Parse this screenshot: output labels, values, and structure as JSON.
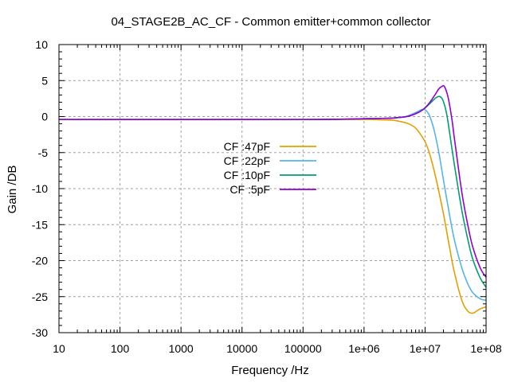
{
  "chart_data": {
    "type": "line",
    "title": "04_STAGE2B_AC_CF - Common emitter+common collector",
    "xlabel": "Frequency /Hz",
    "ylabel": "Gain /DB",
    "xscale": "log",
    "xlim": [
      10,
      100000000
    ],
    "ylim": [
      -30,
      10
    ],
    "grid": true,
    "legend_position": "center-left",
    "x_tick_labels": [
      "10",
      "100",
      "1000",
      "10000",
      "100000",
      "1e+06",
      "1e+07",
      "1e+08"
    ],
    "y_tick_labels": [
      "10",
      "5",
      "0",
      "-5",
      "-10",
      "-15",
      "-20",
      "-25",
      "-30"
    ],
    "series": [
      {
        "name": "CF :47pF",
        "color": "#e69f00",
        "x": [
          10,
          100000,
          1000000,
          2000000,
          3000000,
          4000000,
          5000000,
          6000000,
          7000000,
          8000000,
          10000000,
          12000000,
          15000000,
          20000000,
          25000000,
          30000000,
          40000000,
          50000000,
          60000000,
          70000000,
          80000000,
          100000000
        ],
        "y": [
          -0.4,
          -0.4,
          -0.4,
          -0.45,
          -0.5,
          -0.7,
          -0.9,
          -1.2,
          -1.6,
          -2.2,
          -3.5,
          -5.3,
          -8.5,
          -13.5,
          -18.0,
          -21.5,
          -25.5,
          -27.0,
          -27.3,
          -27.0,
          -26.7,
          -26.4
        ]
      },
      {
        "name": "CF :22pF",
        "color": "#56b4e9",
        "x": [
          10,
          100000,
          1000000,
          2000000,
          3000000,
          4000000,
          5000000,
          6000000,
          7000000,
          8000000,
          9000000,
          10000000,
          11000000,
          12000000,
          14000000,
          17000000,
          20000000,
          25000000,
          30000000,
          40000000,
          50000000,
          60000000,
          80000000,
          100000000
        ],
        "y": [
          -0.4,
          -0.4,
          -0.3,
          -0.25,
          -0.2,
          -0.1,
          0.05,
          0.3,
          0.55,
          0.8,
          1.0,
          0.95,
          0.6,
          0.0,
          -1.8,
          -5.2,
          -8.8,
          -13.5,
          -17.0,
          -21.0,
          -23.2,
          -24.4,
          -25.3,
          -25.5
        ]
      },
      {
        "name": "CF :10pF",
        "color": "#009e73",
        "x": [
          10,
          100000,
          1000000,
          2000000,
          3000000,
          5000000,
          7000000,
          9000000,
          11000000,
          13000000,
          15000000,
          17000000,
          19000000,
          21000000,
          23000000,
          25000000,
          30000000,
          40000000,
          50000000,
          60000000,
          80000000,
          100000000
        ],
        "y": [
          -0.4,
          -0.4,
          -0.3,
          -0.25,
          -0.2,
          0.0,
          0.4,
          0.9,
          1.5,
          2.1,
          2.6,
          2.8,
          2.5,
          1.5,
          0.0,
          -2.0,
          -6.5,
          -13.0,
          -17.0,
          -19.7,
          -22.4,
          -23.7
        ]
      },
      {
        "name": "CF :5pF",
        "color": "#9400d3",
        "x": [
          10,
          100000,
          1000000,
          2000000,
          3000000,
          5000000,
          7000000,
          9000000,
          11000000,
          13000000,
          15000000,
          17000000,
          19000000,
          20000000,
          21000000,
          23000000,
          25000000,
          28000000,
          30000000,
          40000000,
          50000000,
          60000000,
          80000000,
          100000000
        ],
        "y": [
          -0.4,
          -0.4,
          -0.3,
          -0.25,
          -0.2,
          0.0,
          0.4,
          0.9,
          1.6,
          2.4,
          3.2,
          3.9,
          4.2,
          4.3,
          4.1,
          3.2,
          1.8,
          -0.8,
          -2.8,
          -10.5,
          -15.0,
          -18.0,
          -21.0,
          -22.3
        ]
      }
    ]
  }
}
